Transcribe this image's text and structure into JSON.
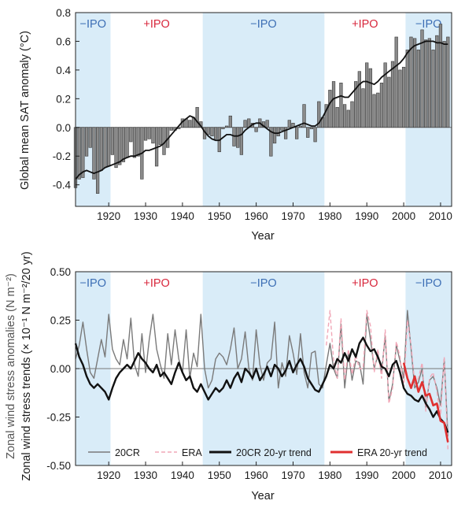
{
  "colors": {
    "neg_ipo_band": "#d9ecf8",
    "neg_ipo_text": "#3d6fb5",
    "pos_ipo_text": "#d8273c",
    "bars": "#8a8a8a",
    "grey_line": "#7a7a7a",
    "era_dashed": "#f1a7b7",
    "black_line": "#111111",
    "red_line": "#e03030"
  },
  "chart_data": [
    {
      "type": "bar",
      "panel": "top",
      "xlabel": "Year",
      "ylabel": "Global mean SAT anomaly (°C)",
      "xlim": [
        1911,
        2013
      ],
      "ylim": [
        -0.55,
        0.8
      ],
      "xticks": [
        1920,
        1930,
        1940,
        1950,
        1960,
        1970,
        1980,
        1990,
        2000,
        2010
      ],
      "yticks": [
        -0.4,
        -0.2,
        0.0,
        0.2,
        0.4,
        0.6,
        0.8
      ],
      "ytick_labels": [
        "-0.4",
        "-0.2",
        "0.0",
        "0.2",
        "0.4",
        "0.6",
        "0.8"
      ],
      "xtick_labels": [
        "1920",
        "1930",
        "1940",
        "1950",
        "1960",
        "1970",
        "1980",
        "1990",
        "2000",
        "2010"
      ],
      "phases": [
        {
          "label": "−IPO",
          "start": 1911,
          "end": 1920.5,
          "shade": true
        },
        {
          "label": "+IPO",
          "start": 1920.5,
          "end": 1945.5,
          "shade": false
        },
        {
          "label": "−IPO",
          "start": 1945.5,
          "end": 1978.5,
          "shade": true
        },
        {
          "label": "+IPO",
          "start": 1978.5,
          "end": 2000.5,
          "shade": false
        },
        {
          "label": "−IPO",
          "start": 2000.5,
          "end": 2013,
          "shade": true
        }
      ],
      "years": [
        1911,
        1912,
        1913,
        1914,
        1915,
        1916,
        1917,
        1918,
        1919,
        1920,
        1921,
        1922,
        1923,
        1924,
        1925,
        1926,
        1927,
        1928,
        1929,
        1930,
        1931,
        1932,
        1933,
        1934,
        1935,
        1936,
        1937,
        1938,
        1939,
        1940,
        1941,
        1942,
        1943,
        1944,
        1945,
        1946,
        1947,
        1948,
        1949,
        1950,
        1951,
        1952,
        1953,
        1954,
        1955,
        1956,
        1957,
        1958,
        1959,
        1960,
        1961,
        1962,
        1963,
        1964,
        1965,
        1966,
        1967,
        1968,
        1969,
        1970,
        1971,
        1972,
        1973,
        1974,
        1975,
        1976,
        1977,
        1978,
        1979,
        1980,
        1981,
        1982,
        1983,
        1984,
        1985,
        1986,
        1987,
        1988,
        1989,
        1990,
        1991,
        1992,
        1993,
        1994,
        1995,
        1996,
        1997,
        1998,
        1999,
        2000,
        2001,
        2002,
        2003,
        2004,
        2005,
        2006,
        2007,
        2008,
        2009,
        2010,
        2011,
        2012
      ],
      "values": [
        -0.42,
        -0.36,
        -0.35,
        -0.2,
        -0.14,
        -0.36,
        -0.46,
        -0.3,
        -0.28,
        -0.27,
        -0.19,
        -0.28,
        -0.26,
        -0.24,
        -0.21,
        -0.1,
        -0.21,
        -0.2,
        -0.36,
        -0.09,
        -0.08,
        -0.11,
        -0.27,
        -0.12,
        -0.19,
        -0.14,
        -0.02,
        -0.02,
        -0.01,
        0.06,
        0.06,
        0.05,
        0.07,
        0.14,
        0.04,
        -0.08,
        -0.05,
        -0.06,
        -0.08,
        -0.17,
        -0.01,
        0.01,
        0.08,
        -0.13,
        -0.14,
        -0.19,
        0.05,
        0.06,
        0.03,
        -0.03,
        0.06,
        0.04,
        0.05,
        -0.2,
        -0.11,
        -0.06,
        -0.02,
        -0.08,
        0.05,
        0.03,
        -0.08,
        0.01,
        0.16,
        -0.07,
        -0.01,
        -0.1,
        0.18,
        0.07,
        0.16,
        0.26,
        0.32,
        0.14,
        0.31,
        0.16,
        0.12,
        0.18,
        0.32,
        0.39,
        0.27,
        0.45,
        0.41,
        0.23,
        0.24,
        0.31,
        0.45,
        0.35,
        0.46,
        0.63,
        0.4,
        0.42,
        0.54,
        0.63,
        0.62,
        0.54,
        0.68,
        0.61,
        0.62,
        0.54,
        0.64,
        0.72,
        0.6,
        0.63
      ],
      "running_mean": [
        -0.36,
        -0.33,
        -0.31,
        -0.3,
        -0.31,
        -0.32,
        -0.31,
        -0.3,
        -0.28,
        -0.27,
        -0.26,
        -0.25,
        -0.24,
        -0.22,
        -0.21,
        -0.2,
        -0.2,
        -0.19,
        -0.18,
        -0.16,
        -0.16,
        -0.15,
        -0.14,
        -0.13,
        -0.11,
        -0.08,
        -0.05,
        -0.02,
        0.01,
        0.04,
        0.06,
        0.08,
        0.07,
        0.04,
        0.01,
        -0.03,
        -0.06,
        -0.08,
        -0.09,
        -0.09,
        -0.07,
        -0.05,
        -0.05,
        -0.06,
        -0.06,
        -0.05,
        -0.02,
        0.0,
        0.02,
        0.03,
        0.03,
        0.01,
        -0.01,
        -0.03,
        -0.04,
        -0.04,
        -0.03,
        -0.02,
        -0.01,
        0.0,
        0.01,
        0.02,
        0.03,
        0.02,
        0.01,
        0.01,
        0.03,
        0.07,
        0.12,
        0.17,
        0.2,
        0.21,
        0.22,
        0.21,
        0.21,
        0.24,
        0.27,
        0.3,
        0.32,
        0.32,
        0.31,
        0.3,
        0.32,
        0.35,
        0.37,
        0.39,
        0.41,
        0.43,
        0.45,
        0.48,
        0.52,
        0.55,
        0.57,
        0.58,
        0.59,
        0.6,
        0.6,
        0.6,
        0.59,
        0.59,
        0.58,
        0.58
      ]
    },
    {
      "type": "line",
      "panel": "bottom",
      "xlabel": "Year",
      "ylabel": "Zonal wind stress anomalies (N m⁻²)",
      "ylabel2": "Zonal wind stress trends (× 10⁻¹ N m⁻²/20 yr)",
      "xlim": [
        1911,
        2013
      ],
      "ylim": [
        -0.5,
        0.5
      ],
      "xticks": [
        1920,
        1930,
        1940,
        1950,
        1960,
        1970,
        1980,
        1990,
        2000,
        2010
      ],
      "yticks": [
        -0.5,
        -0.25,
        0.0,
        0.25,
        0.5
      ],
      "ytick_labels": [
        "-0.50",
        "-0.25",
        "0.00",
        "0.25",
        "0.50"
      ],
      "xtick_labels": [
        "1920",
        "1930",
        "1940",
        "1950",
        "1960",
        "1970",
        "1980",
        "1990",
        "2000",
        "2010"
      ],
      "phases": [
        {
          "label": "−IPO",
          "start": 1911,
          "end": 1920.5,
          "shade": true
        },
        {
          "label": "+IPO",
          "start": 1920.5,
          "end": 1945.5,
          "shade": false
        },
        {
          "label": "−IPO",
          "start": 1945.5,
          "end": 1978.5,
          "shade": true
        },
        {
          "label": "+IPO",
          "start": 1978.5,
          "end": 2000.5,
          "shade": false
        },
        {
          "label": "−IPO",
          "start": 2000.5,
          "end": 2013,
          "shade": true
        }
      ],
      "series": [
        {
          "name": "20CR",
          "style": "grey",
          "x": [
            1911,
            1912,
            1913,
            1914,
            1915,
            1916,
            1917,
            1918,
            1919,
            1920,
            1921,
            1922,
            1923,
            1924,
            1925,
            1926,
            1927,
            1928,
            1929,
            1930,
            1931,
            1932,
            1933,
            1934,
            1935,
            1936,
            1937,
            1938,
            1939,
            1940,
            1941,
            1942,
            1943,
            1944,
            1945,
            1946,
            1947,
            1948,
            1949,
            1950,
            1951,
            1952,
            1953,
            1954,
            1955,
            1956,
            1957,
            1958,
            1959,
            1960,
            1961,
            1962,
            1963,
            1964,
            1965,
            1966,
            1967,
            1968,
            1969,
            1970,
            1971,
            1972,
            1973,
            1974,
            1975,
            1976,
            1977,
            1978,
            1979,
            1980,
            1981,
            1982,
            1983,
            1984,
            1985,
            1986,
            1987,
            1988,
            1989,
            1990,
            1991,
            1992,
            1993,
            1994,
            1995,
            1996,
            1997,
            1998,
            1999,
            2000,
            2001,
            2002,
            2003,
            2004,
            2005,
            2006,
            2007,
            2008,
            2009,
            2010,
            2011,
            2012
          ],
          "values": [
            0.05,
            0.12,
            0.24,
            0.1,
            -0.02,
            -0.05,
            0.05,
            0.15,
            0.06,
            0.28,
            0.1,
            0.05,
            0.02,
            0.15,
            0.05,
            0.26,
            0.02,
            -0.04,
            0.18,
            -0.02,
            0.15,
            0.28,
            0.1,
            0.02,
            -0.05,
            0.18,
            0.02,
            0.2,
            0.05,
            -0.02,
            0.2,
            -0.05,
            0.08,
            0.01,
            0.28,
            0.0,
            -0.1,
            -0.06,
            0.05,
            0.08,
            0.06,
            0.02,
            0.1,
            0.21,
            0.0,
            0.05,
            0.19,
            0.0,
            -0.06,
            0.2,
            0.02,
            -0.06,
            0.03,
            0.05,
            0.24,
            -0.1,
            0.03,
            -0.04,
            0.17,
            0.08,
            -0.03,
            0.18,
            -0.02,
            -0.1,
            0.08,
            0.09,
            -0.08,
            -0.1,
            0.02,
            0.13,
            0.0,
            -0.05,
            0.23,
            -0.1,
            0.08,
            -0.06,
            0.04,
            0.03,
            -0.08,
            0.28,
            0.15,
            0.0,
            0.07,
            -0.02,
            0.17,
            -0.17,
            -0.08,
            0.12,
            0.04,
            -0.05,
            0.3,
            0.1,
            -0.1,
            -0.07,
            0.0,
            -0.2,
            -0.06,
            -0.04,
            -0.1,
            -0.19,
            0.05,
            -0.35
          ]
        },
        {
          "name": "ERA",
          "style": "pink-dashed",
          "x": [
            1979,
            1980,
            1981,
            1982,
            1983,
            1984,
            1985,
            1986,
            1987,
            1988,
            1989,
            1990,
            1991,
            1992,
            1993,
            1994,
            1995,
            1996,
            1997,
            1998,
            1999,
            2000,
            2001,
            2002,
            2003,
            2004,
            2005,
            2006,
            2007,
            2008,
            2009,
            2010,
            2011,
            2012
          ],
          "values": [
            0.12,
            0.3,
            0.04,
            -0.05,
            0.26,
            -0.06,
            0.1,
            -0.03,
            0.07,
            0.0,
            0.0,
            0.3,
            0.22,
            -0.02,
            0.1,
            -0.05,
            0.2,
            -0.18,
            -0.1,
            0.14,
            0.06,
            -0.1,
            0.25,
            0.12,
            -0.08,
            -0.05,
            0.03,
            -0.22,
            -0.05,
            -0.02,
            -0.12,
            -0.24,
            0.06,
            -0.42
          ]
        },
        {
          "name": "20CR 20-yr trend",
          "style": "black-thick",
          "x": [
            1911,
            1912,
            1913,
            1914,
            1915,
            1916,
            1917,
            1918,
            1919,
            1920,
            1921,
            1922,
            1923,
            1924,
            1925,
            1926,
            1927,
            1928,
            1929,
            1930,
            1931,
            1932,
            1933,
            1934,
            1935,
            1936,
            1937,
            1938,
            1939,
            1940,
            1941,
            1942,
            1943,
            1944,
            1945,
            1946,
            1947,
            1948,
            1949,
            1950,
            1951,
            1952,
            1953,
            1954,
            1955,
            1956,
            1957,
            1958,
            1959,
            1960,
            1961,
            1962,
            1963,
            1964,
            1965,
            1966,
            1967,
            1968,
            1969,
            1970,
            1971,
            1972,
            1973,
            1974,
            1975,
            1976,
            1977,
            1978,
            1979,
            1980,
            1981,
            1982,
            1983,
            1984,
            1985,
            1986,
            1987,
            1988,
            1989,
            1990,
            1991,
            1992,
            1993,
            1994,
            1995,
            1996,
            1997,
            1998,
            1999,
            2000,
            2001,
            2002,
            2003,
            2004,
            2005,
            2006,
            2007,
            2008,
            2009,
            2010,
            2011,
            2012
          ],
          "values": [
            0.13,
            0.06,
            0.02,
            -0.04,
            -0.08,
            -0.1,
            -0.08,
            -0.1,
            -0.12,
            -0.16,
            -0.1,
            -0.05,
            -0.02,
            0.0,
            0.02,
            0.0,
            0.04,
            0.08,
            0.05,
            0.03,
            0.0,
            -0.02,
            0.02,
            -0.04,
            -0.02,
            -0.05,
            -0.08,
            -0.02,
            0.03,
            -0.02,
            -0.06,
            -0.04,
            -0.1,
            -0.12,
            -0.08,
            -0.12,
            -0.16,
            -0.13,
            -0.1,
            -0.12,
            -0.1,
            -0.06,
            -0.1,
            -0.05,
            -0.02,
            -0.07,
            0.0,
            -0.02,
            -0.05,
            0.0,
            -0.06,
            -0.03,
            0.01,
            -0.04,
            0.02,
            0.0,
            -0.04,
            -0.01,
            0.04,
            -0.02,
            0.02,
            0.05,
            0.01,
            -0.05,
            -0.08,
            -0.11,
            -0.12,
            -0.08,
            -0.04,
            0.02,
            0.0,
            0.05,
            0.03,
            0.08,
            0.04,
            0.1,
            0.06,
            0.13,
            0.16,
            0.12,
            0.09,
            0.1,
            0.06,
            0.01,
            0.0,
            -0.04,
            0.02,
            0.04,
            -0.02,
            -0.1,
            -0.13,
            -0.14,
            -0.16,
            -0.17,
            -0.14,
            -0.18,
            -0.21,
            -0.25,
            -0.22,
            -0.26,
            -0.28,
            -0.33
          ]
        },
        {
          "name": "ERA 20-yr trend",
          "style": "red-thick",
          "x": [
            2000,
            2001,
            2002,
            2003,
            2004,
            2005,
            2006,
            2007,
            2008,
            2009,
            2010,
            2011,
            2012
          ],
          "values": [
            0.03,
            -0.05,
            -0.1,
            -0.04,
            -0.12,
            -0.07,
            -0.14,
            -0.13,
            -0.19,
            -0.18,
            -0.27,
            -0.28,
            -0.38
          ]
        }
      ],
      "legend_placement": "bottom"
    }
  ]
}
